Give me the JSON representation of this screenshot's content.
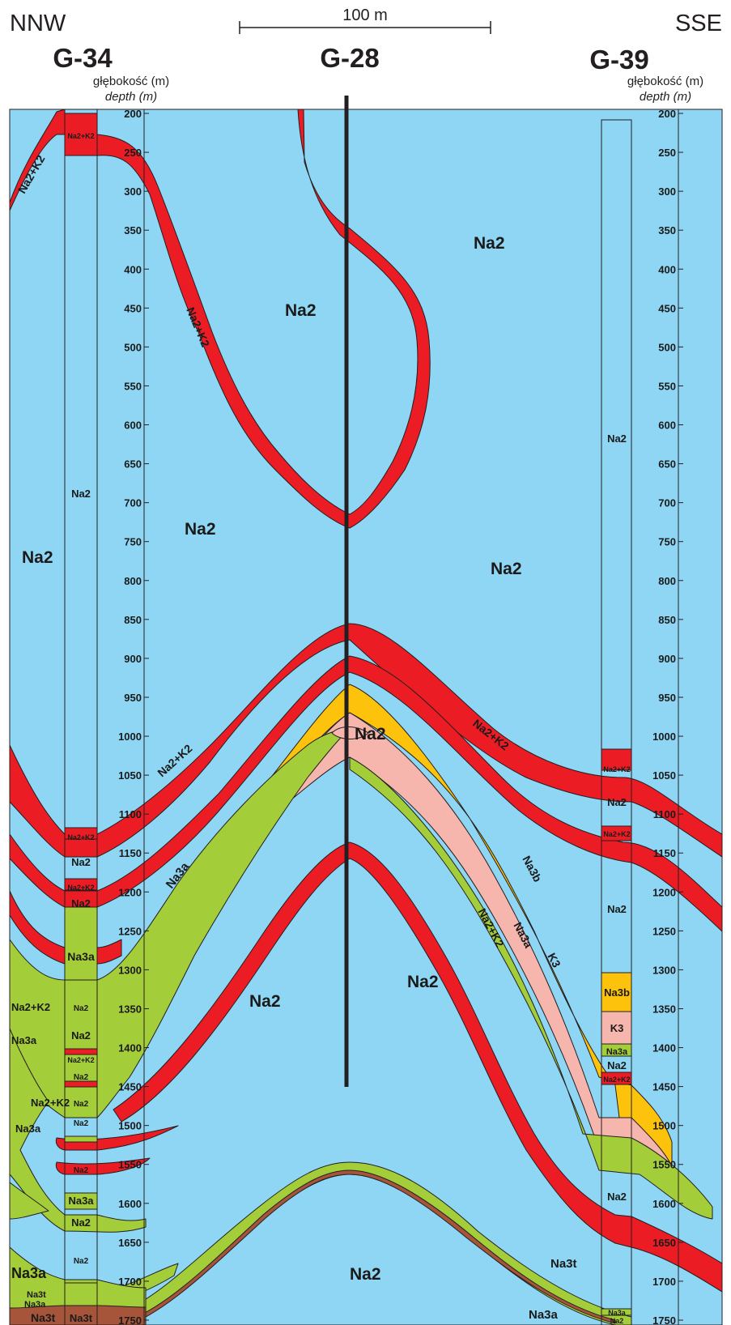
{
  "header": {
    "left_direction": "NNW",
    "right_direction": "SSE",
    "scale_label": "100 m",
    "wells": [
      {
        "name": "G-34",
        "depth_label_pl": "głębokość (m)",
        "depth_label_en": "depth (m)"
      },
      {
        "name": "G-28"
      },
      {
        "name": "G-39",
        "depth_label_pl": "głębokość (m)",
        "depth_label_en": "depth (m)"
      }
    ]
  },
  "depth_axis": {
    "left_ticks": [
      "200",
      "250",
      "300",
      "350",
      "400",
      "450",
      "500",
      "550",
      "600",
      "650",
      "700",
      "750",
      "800",
      "850",
      "900",
      "950",
      "1000",
      "1050",
      "1100",
      "1150",
      "1200",
      "1250",
      "1300",
      "1350",
      "1400",
      "1450",
      "1500",
      "1550",
      "1600",
      "1650",
      "1700",
      "1750"
    ],
    "right_ticks": [
      "200",
      "250",
      "300",
      "350",
      "400",
      "450",
      "500",
      "550",
      "600",
      "650",
      "700",
      "750",
      "800",
      "850",
      "900",
      "950",
      "1000",
      "1050",
      "1100",
      "1150",
      "1200",
      "1250",
      "1300",
      "1350",
      "1400",
      "1450",
      "1500",
      "1550",
      "1600",
      "1650",
      "1700",
      "1750"
    ]
  },
  "section_labels": [
    {
      "text": "Na2+K2"
    },
    {
      "text": "Na2+K2"
    },
    {
      "text": "Na2"
    },
    {
      "text": "Na2"
    },
    {
      "text": "Na2"
    },
    {
      "text": "Na2"
    },
    {
      "text": "Na2"
    },
    {
      "text": "Na2"
    },
    {
      "text": "Na2+K2"
    },
    {
      "text": "Na2+K2"
    },
    {
      "text": "Na3b"
    },
    {
      "text": "K3"
    },
    {
      "text": "Na3a"
    },
    {
      "text": "Na2+K2"
    },
    {
      "text": "Na3a"
    },
    {
      "text": "Na2"
    },
    {
      "text": "Na2"
    },
    {
      "text": "Na2+K2"
    },
    {
      "text": "Na3a"
    },
    {
      "text": "Na2+K2"
    },
    {
      "text": "Na3a"
    },
    {
      "text": "Na3a"
    },
    {
      "text": "Na3t"
    },
    {
      "text": "Na3a"
    },
    {
      "text": "Na3t"
    },
    {
      "text": "Na3a"
    },
    {
      "text": "Na3t"
    },
    {
      "text": "Na2"
    }
  ],
  "g34_column": [
    {
      "text": "Na2+K2"
    },
    {
      "text": "Na2"
    },
    {
      "text": "Na2+K2"
    },
    {
      "text": "Na2"
    },
    {
      "text": "Na2+K2"
    },
    {
      "text": "Na2"
    },
    {
      "text": "Na3a"
    },
    {
      "text": "Na2"
    },
    {
      "text": "Na2"
    },
    {
      "text": "Na2+K2"
    },
    {
      "text": "Na2"
    },
    {
      "text": "Na2"
    },
    {
      "text": "Na2"
    },
    {
      "text": "Na2"
    },
    {
      "text": "Na3a"
    },
    {
      "text": "Na2"
    },
    {
      "text": "Na2"
    },
    {
      "text": "Na3t"
    }
  ],
  "g39_column": [
    {
      "text": "Na2"
    },
    {
      "text": "Na2+K2"
    },
    {
      "text": "Na2"
    },
    {
      "text": "Na2+K2"
    },
    {
      "text": "Na2"
    },
    {
      "text": "Na3b"
    },
    {
      "text": "K3"
    },
    {
      "text": "Na3a"
    },
    {
      "text": "Na2"
    },
    {
      "text": "Na2+K2"
    },
    {
      "text": "Na2"
    },
    {
      "text": "Na3a"
    },
    {
      "text": "Na2"
    }
  ],
  "colors": {
    "Na2": "#8fd6f4",
    "Na2+K2": "#ec1c24",
    "Na3a": "#a4cd3a",
    "Na3b": "#fcc20c",
    "K3": "#f7b6ad",
    "Na3t": "#a6543a",
    "outline": "#231f20"
  }
}
